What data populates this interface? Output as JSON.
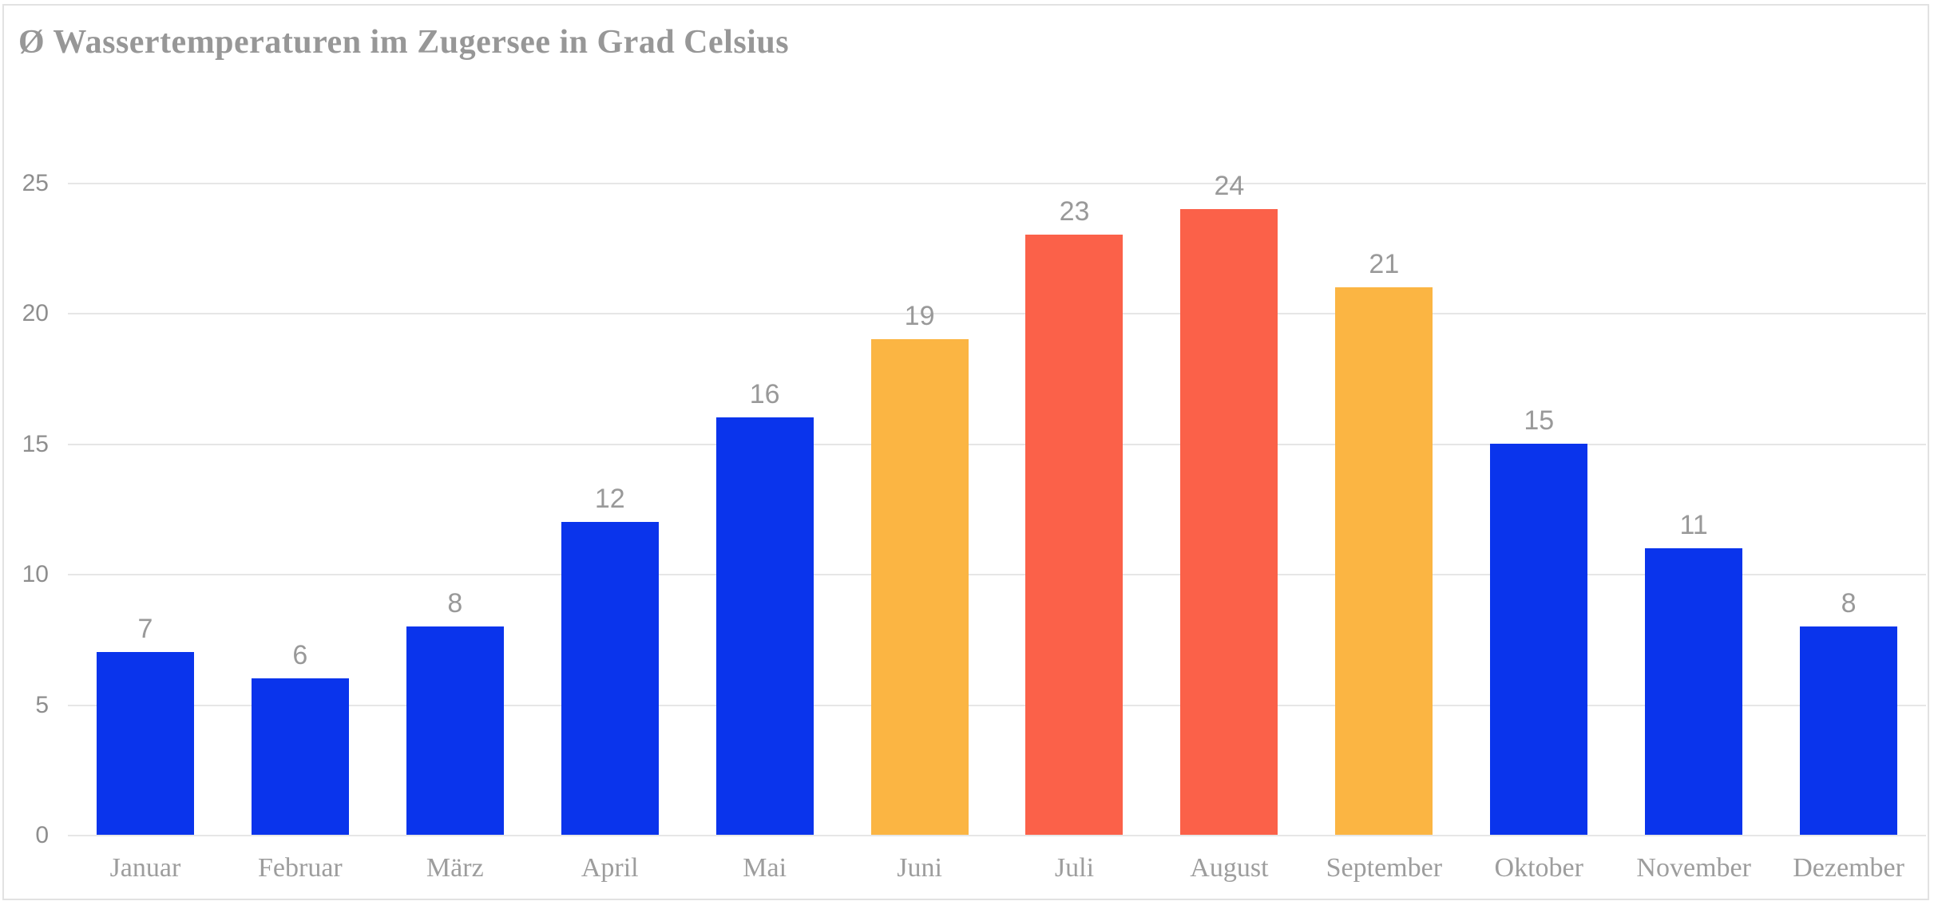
{
  "title": "Ø Wassertemperaturen im Zugersee in Grad Celsius",
  "chart_data": {
    "type": "bar",
    "title": "Ø Wassertemperaturen im Zugersee in Grad Celsius",
    "categories": [
      "Januar",
      "Februar",
      "März",
      "April",
      "Mai",
      "Juni",
      "Juli",
      "August",
      "September",
      "Oktober",
      "November",
      "Dezember"
    ],
    "values": [
      7,
      6,
      8,
      12,
      16,
      19,
      23,
      24,
      21,
      15,
      11,
      8
    ],
    "value_labels": [
      "7",
      "6",
      "8",
      "12",
      "16",
      "19",
      "23",
      "24",
      "21",
      "15",
      "11",
      "8"
    ],
    "bar_colors": [
      "#0a34ec",
      "#0a34ec",
      "#0a34ec",
      "#0a34ec",
      "#0a34ec",
      "#fbb543",
      "#fb6149",
      "#fb6149",
      "#fbb543",
      "#0a34ec",
      "#0a34ec",
      "#0a34ec"
    ],
    "palette": {
      "blue": "#0a34ec",
      "amber": "#fbb543",
      "red_orange": "#fb6149",
      "gridline": "#e6e6e6",
      "tick_text": "#8e8e8e",
      "value_text": "#999999",
      "month_text": "#9d9d9d",
      "title_text": "#979797",
      "card_border": "#e2e2e2",
      "background": "#ffffff"
    },
    "xlabel": "",
    "ylabel": "",
    "ylim": [
      0,
      25
    ],
    "yticks": [
      "0",
      "5",
      "10",
      "15",
      "20",
      "25"
    ],
    "grid": "horizontal-only",
    "legend": "none",
    "value_labels_shown": true
  }
}
